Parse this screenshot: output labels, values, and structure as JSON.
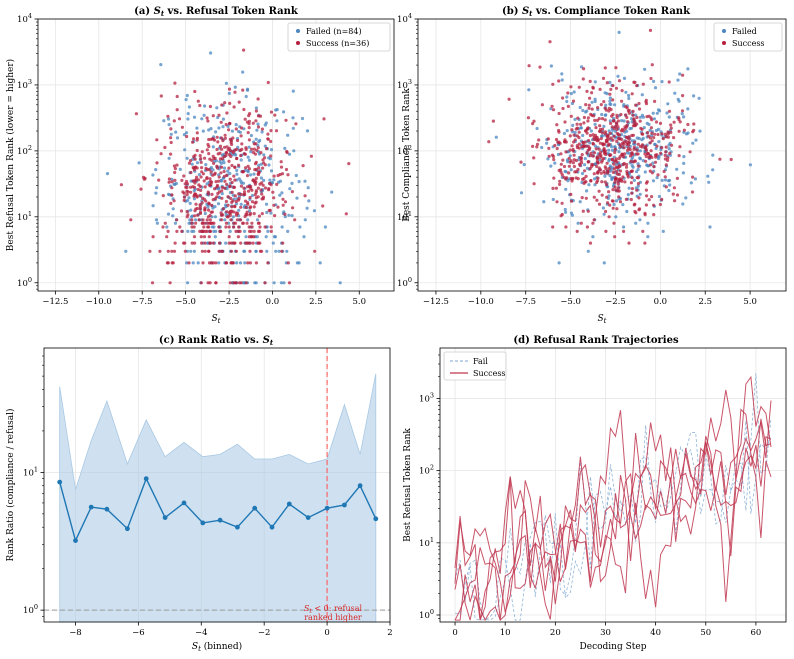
{
  "colors": {
    "failed": "#4a86c0",
    "success": "#b5203f",
    "ratio_line": "#1f77b4",
    "band": "#a8c8e4",
    "threshold": "#ff5a5a",
    "fail_traj": "#7da7d0",
    "success_traj": "#c0364f"
  },
  "chart_data": [
    {
      "id": "a",
      "type": "scatter",
      "title": "(a) S_t vs. Refusal Token Rank",
      "title_parts": [
        "(a) ",
        "S",
        "t",
        " vs. Refusal Token Rank"
      ],
      "xlabel": "S_t",
      "ylabel": "Best Refusal Token Rank (lower = higher)",
      "xlim": [
        -13.5,
        7
      ],
      "ylim": [
        0.75,
        10000
      ],
      "yscale": "log",
      "xticks": [
        -12.5,
        -10.0,
        -7.5,
        -5.0,
        -2.5,
        0.0,
        2.5,
        5.0
      ],
      "xtick_labels": [
        "−12.5",
        "−10.0",
        "−7.5",
        "−5.0",
        "−2.5",
        "0.0",
        "2.5",
        "5.0"
      ],
      "yticks": [
        1,
        10,
        100,
        1000,
        10000
      ],
      "grid": true,
      "legend_position": "top-right",
      "legend": [
        "Failed (n=84)",
        "Success (n=36)"
      ],
      "series": [
        {
          "name": "Failed (n=84)",
          "color_key": "failed",
          "n_points": 420,
          "x_mean": -2.4,
          "x_sd": 2.1,
          "log10y_mean": 1.4,
          "log10y_sd": 0.7,
          "x_range": [
            -9.5,
            6
          ],
          "log10y_range": [
            0,
            3.9
          ]
        },
        {
          "name": "Success (n=36)",
          "color_key": "success",
          "n_points": 620,
          "x_mean": -2.8,
          "x_sd": 1.9,
          "log10y_mean": 1.4,
          "log10y_sd": 0.65,
          "x_range": [
            -9.5,
            6
          ],
          "log10y_range": [
            0,
            3.9
          ]
        }
      ]
    },
    {
      "id": "b",
      "type": "scatter",
      "title": "(b) S_t vs. Compliance Token Rank",
      "title_parts": [
        "(b) ",
        "S",
        "t",
        " vs. Compliance Token Rank"
      ],
      "xlabel": "S_t",
      "ylabel": "Best Compliance Token Rank",
      "xlim": [
        -13.5,
        7
      ],
      "ylim": [
        0.75,
        10000
      ],
      "yscale": "log",
      "xticks": [
        -12.5,
        -10.0,
        -7.5,
        -5.0,
        -2.5,
        0.0,
        2.5,
        5.0
      ],
      "xtick_labels": [
        "−12.5",
        "−10.0",
        "−7.5",
        "−5.0",
        "−2.5",
        "0.0",
        "2.5",
        "5.0"
      ],
      "yticks": [
        1,
        10,
        100,
        1000,
        10000
      ],
      "grid": true,
      "legend_position": "top-right",
      "legend": [
        "Failed",
        "Success"
      ],
      "series": [
        {
          "name": "Failed",
          "color_key": "failed",
          "n_points": 420,
          "x_mean": -2.4,
          "x_sd": 2.1,
          "log10y_mean": 2.05,
          "log10y_sd": 0.55,
          "x_range": [
            -12.5,
            6
          ],
          "log10y_range": [
            0,
            3.9
          ]
        },
        {
          "name": "Success",
          "color_key": "success",
          "n_points": 620,
          "x_mean": -2.8,
          "x_sd": 1.9,
          "log10y_mean": 2.05,
          "log10y_sd": 0.5,
          "x_range": [
            -12.5,
            6
          ],
          "log10y_range": [
            0,
            3.9
          ]
        }
      ]
    },
    {
      "id": "c",
      "type": "line",
      "title": "(c) Rank Ratio vs. S_t",
      "title_parts": [
        "(c) Rank Ratio vs. ",
        "S",
        "t",
        ""
      ],
      "xlabel": "S_t (binned)",
      "ylabel": "Rank Ratio (compliance / refusal)",
      "xlim": [
        -9,
        2
      ],
      "ylim": [
        0.82,
        80
      ],
      "yscale": "log",
      "xticks": [
        -8,
        -6,
        -4,
        -2,
        0,
        2
      ],
      "xtick_labels": [
        "−8",
        "−6",
        "−4",
        "−2",
        "0",
        "2"
      ],
      "yticks": [
        1,
        10
      ],
      "yminor_ticks": [
        2,
        3,
        4,
        5,
        6,
        7,
        8,
        9,
        20,
        30,
        40,
        50,
        60,
        70
      ],
      "grid": true,
      "x": [
        -8.5,
        -8.0,
        -7.5,
        -7.0,
        -6.35,
        -5.75,
        -5.15,
        -4.55,
        -3.95,
        -3.4,
        -2.85,
        -2.3,
        -1.75,
        -1.2,
        -0.6,
        0.0,
        0.55,
        1.05,
        1.55
      ],
      "values": [
        8.5,
        3.2,
        5.6,
        5.4,
        3.9,
        9.0,
        4.7,
        6.0,
        4.3,
        4.5,
        4.0,
        5.5,
        4.0,
        5.9,
        4.7,
        5.5,
        5.8,
        8.0,
        4.6
      ],
      "band_upper": [
        42,
        7.5,
        17,
        33,
        11.5,
        24,
        13,
        16.5,
        13,
        13.5,
        16,
        12.5,
        12.5,
        13.5,
        11.5,
        12.5,
        31,
        13.5,
        52
      ],
      "band_lower": 0.82,
      "threshold_x": 0,
      "reference_y": 1,
      "annotation_line1_parts": [
        "S",
        "t",
        " < 0: refusal"
      ],
      "annotation_line2": "ranked higher"
    },
    {
      "id": "d",
      "type": "line",
      "title": "(d) Refusal Rank Trajectories",
      "xlabel": "Decoding Step",
      "ylabel": "Best Refusal Token Rank",
      "xlim": [
        -3,
        66
      ],
      "ylim": [
        0.8,
        5000
      ],
      "yscale": "log",
      "xticks": [
        0,
        10,
        20,
        30,
        40,
        50,
        60
      ],
      "yticks": [
        1,
        10,
        100,
        1000
      ],
      "grid": true,
      "legend_position": "top-left",
      "legend": [
        "Fail",
        "Success"
      ],
      "series": [
        {
          "name": "Fail",
          "color_key": "fail_traj",
          "style": "dashed",
          "traj_count": 2,
          "seed": 11
        },
        {
          "name": "Success",
          "color_key": "success_traj",
          "style": "solid",
          "traj_count": 5,
          "seed": 23
        }
      ]
    }
  ]
}
